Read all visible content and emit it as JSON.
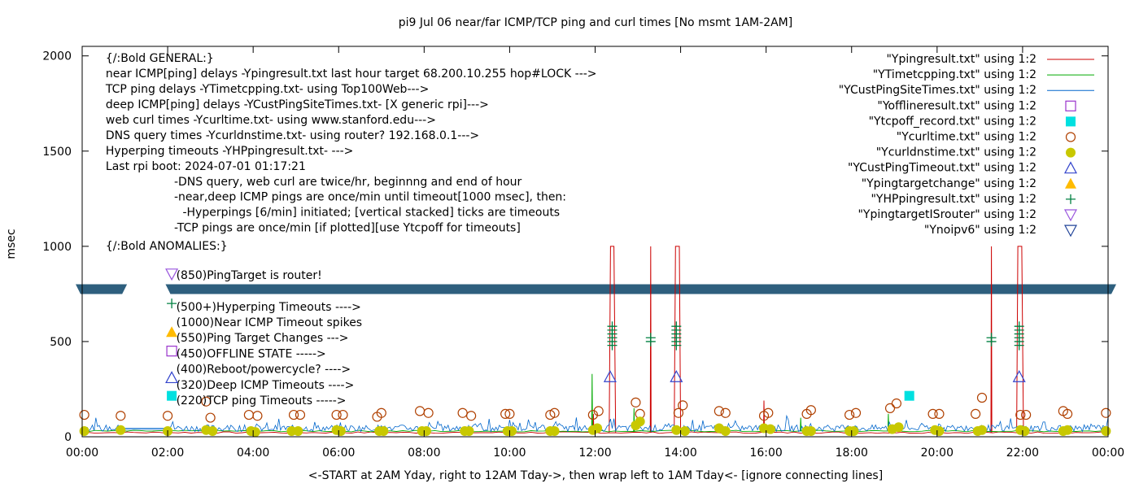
{
  "chart_data": {
    "type": "line",
    "title": "pi9 Jul 06  near/far ICMP/TCP ping and curl times [No msmt 1AM-2AM]",
    "xlabel": "<-START at 2AM Yday, right to 12AM Tday->, then wrap left to 1AM Tday<- [ignore connecting lines]",
    "ylabel": "msec",
    "ylim": [
      0,
      2050
    ],
    "xlim": [
      0,
      24
    ],
    "yticks": [
      {
        "value": 0,
        "label": "0"
      },
      {
        "value": 500,
        "label": "500"
      },
      {
        "value": 1000,
        "label": "1000"
      },
      {
        "value": 1500,
        "label": "1500"
      },
      {
        "value": 2000,
        "label": "2000"
      }
    ],
    "xticks": [
      {
        "value": 0,
        "label": "00:00"
      },
      {
        "value": 2,
        "label": "02:00"
      },
      {
        "value": 4,
        "label": "04:00"
      },
      {
        "value": 6,
        "label": "06:00"
      },
      {
        "value": 8,
        "label": "08:00"
      },
      {
        "value": 10,
        "label": "10:00"
      },
      {
        "value": 12,
        "label": "12:00"
      },
      {
        "value": 14,
        "label": "14:00"
      },
      {
        "value": 16,
        "label": "16:00"
      },
      {
        "value": 18,
        "label": "18:00"
      },
      {
        "value": 20,
        "label": "20:00"
      },
      {
        "value": 22,
        "label": "22:00"
      },
      {
        "value": 24,
        "label": "00:00"
      }
    ],
    "grid": false,
    "legend_position": "top-right",
    "colors": {
      "pingresult": "#cc0000",
      "timetcpping": "#00aa00",
      "custping": "#0066cc",
      "offline": "#9933cc",
      "tcpoff": "#00e0e0",
      "curltime": "#b04000",
      "curldns": "#c8c800",
      "custtimeout": "#3344cc",
      "targetchange": "#ffbb00",
      "hpping": "#008040",
      "router": "#9955dd",
      "noipv6": "#224499",
      "band": "#2e5f7e"
    },
    "legend": [
      {
        "label": "\"Ypingresult.txt\" using 1:2",
        "style": "line",
        "color": "#cc0000"
      },
      {
        "label": "\"YTimetcpping.txt\" using 1:2",
        "style": "line",
        "color": "#00aa00"
      },
      {
        "label": "\"YCustPingSiteTimes.txt\" using 1:2",
        "style": "line",
        "color": "#0066cc"
      },
      {
        "label": "\"Yofflineresult.txt\" using 1:2",
        "style": "square-open",
        "color": "#9933cc"
      },
      {
        "label": "\"Ytcpoff_record.txt\" using 1:2",
        "style": "square-filled",
        "color": "#00e0e0"
      },
      {
        "label": "\"Ycurltime.txt\" using 1:2",
        "style": "circle-open",
        "color": "#b04000"
      },
      {
        "label": "\"Ycurldnstime.txt\" using 1:2",
        "style": "circle-filled",
        "color": "#c8c800"
      },
      {
        "label": "\"YCustPingTimeout.txt\" using 1:2",
        "style": "triangle-open",
        "color": "#3344cc"
      },
      {
        "label": "\"Ypingtargetchange\" using 1:2",
        "style": "triangle-filled",
        "color": "#ffbb00"
      },
      {
        "label": "\"YHPpingresult.txt\" using 1:2",
        "style": "plus",
        "color": "#008040"
      },
      {
        "label": "\"YpingtargetISrouter\" using 1:2",
        "style": "invtriangle-open",
        "color": "#9955dd"
      },
      {
        "label": "\"Ynoipv6\" using 1:2",
        "style": "invtriangle-open",
        "color": "#224499"
      }
    ],
    "annotations": [
      {
        "text": "{/:Bold GENERAL:}",
        "x": 0.55,
        "y": 1990
      },
      {
        "text": "near ICMP[ping] delays -Ypingresult.txt last hour target 68.200.10.255 hop#LOCK --->",
        "x": 0.55,
        "y": 1909
      },
      {
        "text": "TCP ping delays -YTimetcpping.txt- using Top100Web--->",
        "x": 0.55,
        "y": 1828
      },
      {
        "text": "deep ICMP[ping] delays -YCustPingSiteTimes.txt- [X generic rpi]--->",
        "x": 0.55,
        "y": 1747
      },
      {
        "text": "web curl times -Ycurltime.txt- using www.stanford.edu--->",
        "x": 0.55,
        "y": 1666
      },
      {
        "text": "DNS query times -Ycurldnstime.txt- using router? 192.168.0.1--->",
        "x": 0.55,
        "y": 1585
      },
      {
        "text": "Hyperping timeouts -YHPpingresult.txt- --->",
        "x": 0.55,
        "y": 1504
      },
      {
        "text": "Last rpi boot: 2024-07-01 01:17:21",
        "x": 0.55,
        "y": 1423
      },
      {
        "text": "-DNS query, web curl are twice/hr, beginnng and end of hour",
        "x": 2.15,
        "y": 1342
      },
      {
        "text": "-near,deep ICMP pings are once/min until timeout[1000 msec], then:",
        "x": 2.15,
        "y": 1261
      },
      {
        "text": "-Hyperpings [6/min] initiated; [vertical stacked] ticks are timeouts",
        "x": 2.35,
        "y": 1180
      },
      {
        "text": "-TCP pings are once/min [if plotted][use Ytcpoff for timeouts]",
        "x": 2.15,
        "y": 1099
      },
      {
        "text": "{/:Bold ANOMALIES:}",
        "x": 0.55,
        "y": 1003
      },
      {
        "text": "(850)PingTarget is router!",
        "x": 2.2,
        "y": 850
      },
      {
        "text": "(500+)Hyperping Timeouts ---->",
        "x": 2.2,
        "y": 683
      },
      {
        "text": "(1000)Near ICMP Timeout spikes",
        "x": 2.2,
        "y": 602
      },
      {
        "text": "(550)Ping Target Changes --->",
        "x": 2.2,
        "y": 520
      },
      {
        "text": "(450)OFFLINE STATE ----->",
        "x": 2.2,
        "y": 438
      },
      {
        "text": "(400)Reboot/powercycle? ---->",
        "x": 2.2,
        "y": 356
      },
      {
        "text": "(320)Deep ICMP Timeouts ---->",
        "x": 2.2,
        "y": 274
      },
      {
        "text": "(220)TCP ping Timeouts ----->",
        "x": 2.2,
        "y": 192
      }
    ],
    "anomaly_markers": [
      {
        "style": "invtriangle-open",
        "color": "#9955dd",
        "x": 2.0,
        "y": 855
      },
      {
        "style": "plus",
        "color": "#008040",
        "x": 2.0,
        "y": 700
      },
      {
        "style": "triangle-filled",
        "color": "#ffbb00",
        "x": 2.0,
        "y": 550
      },
      {
        "style": "square-open",
        "color": "#9933cc",
        "x": 2.0,
        "y": 450
      },
      {
        "style": "triangle-open",
        "color": "#3344cc",
        "x": 2.0,
        "y": 310
      },
      {
        "style": "square-filled",
        "color": "#00e0e0",
        "x": 2.0,
        "y": 215
      }
    ],
    "band": {
      "y": 775,
      "segments": [
        [
          -0.2,
          1.05
        ],
        [
          1.95,
          24.6
        ]
      ],
      "color": "#2e5f7e"
    },
    "series": [
      {
        "name": "\"Ypingresult.txt\" using 1:2",
        "color": "#cc0000",
        "baseline": 22,
        "spikes": [
          {
            "x": [
              12.33,
              12.36,
              12.44,
              12.48
            ],
            "y": [
              22,
              1000,
              1000,
              22
            ]
          },
          {
            "x": [
              13.29,
              13.3,
              13.31
            ],
            "y": [
              22,
              1000,
              22
            ]
          },
          {
            "x": [
              13.85,
              13.88,
              13.97,
              14.0
            ],
            "y": [
              22,
              1000,
              1000,
              22
            ]
          },
          {
            "x": [
              21.26,
              21.27,
              21.28
            ],
            "y": [
              22,
              1000,
              22
            ]
          },
          {
            "x": [
              21.86,
              21.89,
              21.98,
              22.02
            ],
            "y": [
              22,
              1000,
              1000,
              22
            ]
          },
          {
            "x": [
              15.94,
              15.95,
              15.96
            ],
            "y": [
              22,
              190,
              22
            ]
          },
          {
            "x": [
              11.95,
              11.96,
              11.97
            ],
            "y": [
              22,
              120,
              22
            ]
          }
        ]
      },
      {
        "name": "\"YTimetcpping.txt\" using 1:2",
        "color": "#00aa00",
        "baseline": 30,
        "spikes": [
          {
            "x": [
              11.92,
              11.93,
              11.94
            ],
            "y": [
              30,
              330,
              30
            ]
          },
          {
            "x": [
              12.9,
              12.91,
              12.92
            ],
            "y": [
              30,
              150,
              30
            ]
          },
          {
            "x": [
              18.85,
              18.86,
              18.87
            ],
            "y": [
              30,
              120,
              30
            ]
          },
          {
            "x": [
              16.8,
              16.81,
              16.82
            ],
            "y": [
              30,
              100,
              30
            ]
          }
        ]
      },
      {
        "name": "\"YCustPingSiteTimes.txt\" using 1:2",
        "color": "#0066cc",
        "baseline": 45,
        "noise": 35
      }
    ],
    "hp_timeout_ticks": [
      {
        "x": 12.4,
        "y": [
          480,
          500,
          520,
          540,
          560,
          580
        ]
      },
      {
        "x": 13.3,
        "y": [
          500,
          520
        ]
      },
      {
        "x": 13.9,
        "y": [
          480,
          500,
          520,
          540,
          560,
          580
        ]
      },
      {
        "x": 21.27,
        "y": [
          500,
          520
        ]
      },
      {
        "x": 21.92,
        "y": [
          480,
          500,
          520,
          540,
          560,
          580
        ]
      }
    ],
    "cust_timeouts": [
      {
        "x": 12.35,
        "y": 315
      },
      {
        "x": 13.9,
        "y": 315
      },
      {
        "x": 21.92,
        "y": 315
      }
    ],
    "tcp_timeouts": [
      {
        "x": 19.35,
        "y": 215
      }
    ],
    "curltime_points": [
      {
        "x": 0.05,
        "y": 115
      },
      {
        "x": 0.9,
        "y": 110
      },
      {
        "x": 2.0,
        "y": 110
      },
      {
        "x": 2.9,
        "y": 185
      },
      {
        "x": 3.0,
        "y": 100
      },
      {
        "x": 3.9,
        "y": 115
      },
      {
        "x": 4.1,
        "y": 110
      },
      {
        "x": 4.95,
        "y": 115
      },
      {
        "x": 5.1,
        "y": 115
      },
      {
        "x": 5.95,
        "y": 115
      },
      {
        "x": 6.1,
        "y": 115
      },
      {
        "x": 6.9,
        "y": 105
      },
      {
        "x": 7.0,
        "y": 125
      },
      {
        "x": 7.9,
        "y": 135
      },
      {
        "x": 8.1,
        "y": 125
      },
      {
        "x": 8.9,
        "y": 125
      },
      {
        "x": 9.1,
        "y": 110
      },
      {
        "x": 9.9,
        "y": 120
      },
      {
        "x": 10.0,
        "y": 120
      },
      {
        "x": 10.95,
        "y": 115
      },
      {
        "x": 11.05,
        "y": 125
      },
      {
        "x": 11.95,
        "y": 115
      },
      {
        "x": 12.08,
        "y": 135
      },
      {
        "x": 12.95,
        "y": 180
      },
      {
        "x": 13.05,
        "y": 120
      },
      {
        "x": 13.95,
        "y": 125
      },
      {
        "x": 14.05,
        "y": 165
      },
      {
        "x": 14.9,
        "y": 135
      },
      {
        "x": 15.05,
        "y": 125
      },
      {
        "x": 15.95,
        "y": 110
      },
      {
        "x": 16.05,
        "y": 125
      },
      {
        "x": 16.95,
        "y": 120
      },
      {
        "x": 17.05,
        "y": 140
      },
      {
        "x": 17.95,
        "y": 115
      },
      {
        "x": 18.1,
        "y": 125
      },
      {
        "x": 18.9,
        "y": 150
      },
      {
        "x": 19.05,
        "y": 175
      },
      {
        "x": 19.9,
        "y": 120
      },
      {
        "x": 20.05,
        "y": 120
      },
      {
        "x": 20.9,
        "y": 120
      },
      {
        "x": 21.05,
        "y": 205
      },
      {
        "x": 21.95,
        "y": 115
      },
      {
        "x": 22.08,
        "y": 115
      },
      {
        "x": 22.95,
        "y": 135
      },
      {
        "x": 23.05,
        "y": 120
      },
      {
        "x": 23.95,
        "y": 125
      }
    ],
    "curldns_points": [
      {
        "x": 0.05,
        "y": 30
      },
      {
        "x": 0.9,
        "y": 35
      },
      {
        "x": 2.0,
        "y": 30
      },
      {
        "x": 2.9,
        "y": 35
      },
      {
        "x": 3.05,
        "y": 30
      },
      {
        "x": 3.95,
        "y": 30
      },
      {
        "x": 4.05,
        "y": 25
      },
      {
        "x": 4.9,
        "y": 30
      },
      {
        "x": 5.05,
        "y": 30
      },
      {
        "x": 5.95,
        "y": 35
      },
      {
        "x": 6.05,
        "y": 30
      },
      {
        "x": 6.95,
        "y": 30
      },
      {
        "x": 7.05,
        "y": 30
      },
      {
        "x": 7.95,
        "y": 30
      },
      {
        "x": 8.05,
        "y": 30
      },
      {
        "x": 8.95,
        "y": 30
      },
      {
        "x": 9.05,
        "y": 30
      },
      {
        "x": 9.95,
        "y": 30
      },
      {
        "x": 10.05,
        "y": 30
      },
      {
        "x": 10.95,
        "y": 30
      },
      {
        "x": 11.05,
        "y": 30
      },
      {
        "x": 11.95,
        "y": 35
      },
      {
        "x": 12.05,
        "y": 45
      },
      {
        "x": 12.95,
        "y": 60
      },
      {
        "x": 13.05,
        "y": 80
      },
      {
        "x": 13.9,
        "y": 35
      },
      {
        "x": 14.1,
        "y": 30
      },
      {
        "x": 14.9,
        "y": 45
      },
      {
        "x": 15.05,
        "y": 30
      },
      {
        "x": 15.95,
        "y": 45
      },
      {
        "x": 16.1,
        "y": 40
      },
      {
        "x": 16.95,
        "y": 30
      },
      {
        "x": 17.05,
        "y": 30
      },
      {
        "x": 17.95,
        "y": 30
      },
      {
        "x": 18.05,
        "y": 30
      },
      {
        "x": 18.95,
        "y": 40
      },
      {
        "x": 19.1,
        "y": 50
      },
      {
        "x": 19.95,
        "y": 35
      },
      {
        "x": 20.05,
        "y": 30
      },
      {
        "x": 20.95,
        "y": 30
      },
      {
        "x": 21.05,
        "y": 35
      },
      {
        "x": 21.95,
        "y": 35
      },
      {
        "x": 22.05,
        "y": 30
      },
      {
        "x": 22.95,
        "y": 30
      },
      {
        "x": 23.05,
        "y": 35
      },
      {
        "x": 23.95,
        "y": 30
      }
    ]
  }
}
